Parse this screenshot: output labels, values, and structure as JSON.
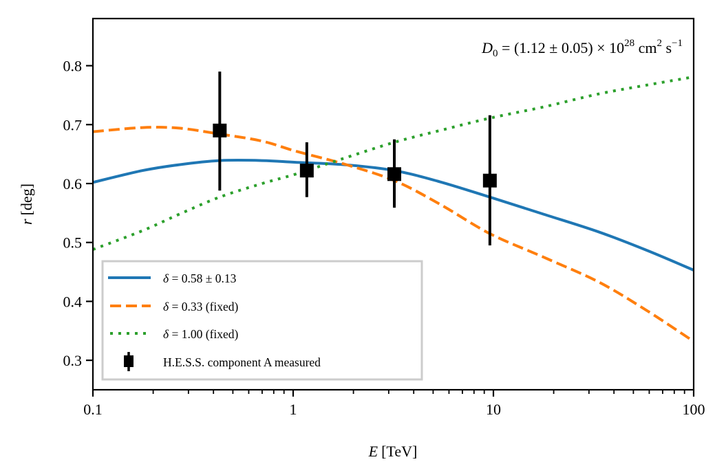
{
  "chart_data": {
    "type": "line",
    "title": "",
    "xlabel": "E [TeV]",
    "xlabel_var": "E",
    "xlabel_unit": "[TeV]",
    "ylabel": "r [deg]",
    "ylabel_var": "r",
    "ylabel_unit": "[deg]",
    "xscale": "log",
    "xlim": [
      0.1,
      100
    ],
    "ylim": [
      0.25,
      0.88
    ],
    "grid": false,
    "legend_position": "lower-left",
    "x_ticks": [
      {
        "value": 0.1,
        "label": "0.1"
      },
      {
        "value": 1,
        "label": "1"
      },
      {
        "value": 10,
        "label": "10"
      },
      {
        "value": 100,
        "label": "100"
      }
    ],
    "y_ticks": [
      {
        "value": 0.3,
        "label": "0.3"
      },
      {
        "value": 0.4,
        "label": "0.4"
      },
      {
        "value": 0.5,
        "label": "0.5"
      },
      {
        "value": 0.6,
        "label": "0.6"
      },
      {
        "value": 0.7,
        "label": "0.7"
      },
      {
        "value": 0.8,
        "label": "0.8"
      }
    ],
    "annotation": {
      "lhs": "D",
      "lhs_sub": "0",
      "body": " = (1.12 ± 0.05) × 10",
      "exp": "28",
      "unit1": " cm",
      "unit1_exp": "2",
      "unit2": " s",
      "unit2_exp": "−1"
    },
    "x": [
      0.1,
      0.177,
      0.27,
      0.43,
      0.7,
      1.03,
      1.8,
      3.2,
      5.4,
      9.6,
      17.8,
      33.5,
      58,
      100
    ],
    "series": [
      {
        "name": "δ = 0.58 ± 0.13",
        "legend_sym": "δ",
        "legend_rest": " = 0.58 ± 0.13",
        "color": "#1f77b4",
        "style": "solid",
        "values": [
          0.602,
          0.622,
          0.632,
          0.639,
          0.639,
          0.636,
          0.632,
          0.622,
          0.603,
          0.577,
          0.548,
          0.518,
          0.487,
          0.453
        ]
      },
      {
        "name": "δ = 0.33 (fixed)",
        "legend_sym": "δ",
        "legend_rest": " = 0.33 (fixed)",
        "color": "#ff7f0e",
        "style": "dashed",
        "values": [
          0.688,
          0.695,
          0.694,
          0.684,
          0.672,
          0.655,
          0.633,
          0.605,
          0.565,
          0.515,
          0.475,
          0.433,
          0.385,
          0.332
        ]
      },
      {
        "name": "δ = 1.00 (fixed)",
        "legend_sym": "δ",
        "legend_rest": " = 1.00 (fixed)",
        "color": "#2ca02c",
        "style": "dotted",
        "values": [
          0.488,
          0.52,
          0.548,
          0.577,
          0.6,
          0.616,
          0.643,
          0.67,
          0.69,
          0.711,
          0.73,
          0.752,
          0.767,
          0.781
        ]
      }
    ],
    "measurements": {
      "name": "H.E.S.S. component A measured",
      "color": "#000000",
      "points": [
        {
          "x": 0.43,
          "y": 0.69,
          "y_low": 0.588,
          "y_high": 0.79
        },
        {
          "x": 1.17,
          "y": 0.622,
          "y_low": 0.577,
          "y_high": 0.67
        },
        {
          "x": 3.2,
          "y": 0.616,
          "y_low": 0.559,
          "y_high": 0.675
        },
        {
          "x": 9.6,
          "y": 0.605,
          "y_low": 0.495,
          "y_high": 0.716
        }
      ]
    }
  }
}
